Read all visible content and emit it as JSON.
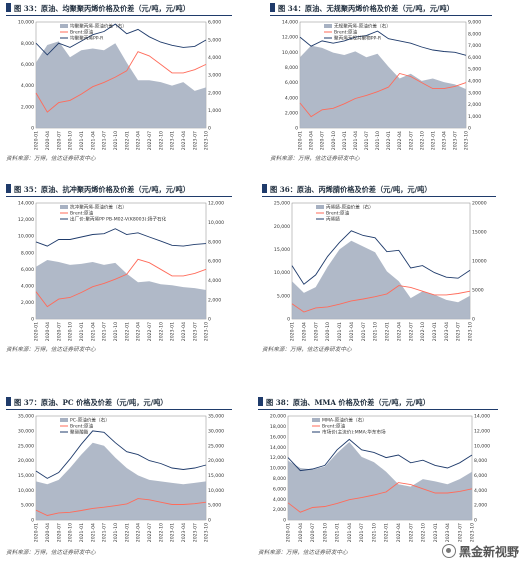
{
  "figures": [
    {
      "title": "图 33：原油、均聚聚丙烯价格及价差（元/吨，元/吨）",
      "source": "资料来源：万得，信达证券研发中心",
      "chart_data": {
        "type": "area",
        "dates": [
          "2020-01",
          "2020-04",
          "2020-07",
          "2020-10",
          "2021-01",
          "2021-04",
          "2021-07",
          "2021-10",
          "2022-01",
          "2022-04",
          "2022-07",
          "2022-10",
          "2023-01",
          "2023-04",
          "2023-07",
          "2023-10"
        ],
        "y_left_ticks": [
          "0",
          "2,000",
          "4,000",
          "6,000",
          "8,000",
          "10,000"
        ],
        "y_left_lim": [
          0,
          10000
        ],
        "y_right_ticks": [
          "0",
          "1,000",
          "2,000",
          "3,000",
          "4,000",
          "5,000",
          "6,000"
        ],
        "y_right_lim": [
          0,
          6000
        ],
        "legend_position": "top-left",
        "series": [
          {
            "name": "均聚聚丙烯-原油价差（右）",
            "axis": "right",
            "kind": "area",
            "color": "#a7b1c2",
            "values": [
              3700,
              4700,
              4900,
              4000,
              4400,
              4500,
              4400,
              4800,
              3700,
              2700,
              2700,
              2600,
              2400,
              2600,
              2100,
              2300
            ]
          },
          {
            "name": "Brent:原油",
            "axis": "left",
            "kind": "line",
            "color": "#ff6b5a",
            "values": [
              3300,
              1500,
              2400,
              2600,
              3200,
              3900,
              4300,
              4800,
              5400,
              7200,
              6800,
              6000,
              5200,
              5200,
              5500,
              6000
            ]
          },
          {
            "name": "均聚聚丙烯PP-R",
            "axis": "left",
            "kind": "line",
            "color": "#1f3b6b",
            "values": [
              8000,
              6900,
              8000,
              7600,
              8200,
              8800,
              9100,
              9800,
              8900,
              9300,
              8600,
              8100,
              7800,
              7600,
              7700,
              8300
            ]
          }
        ]
      }
    },
    {
      "title": "图 34：原油、无规聚丙烯价格及价差（元/吨，元/吨）",
      "source": "资料来源：万得，信达证券研发中心",
      "chart_data": {
        "type": "area",
        "dates": [
          "2020-01",
          "2020-04",
          "2020-07",
          "2020-10",
          "2021-01",
          "2021-04",
          "2021-07",
          "2021-10",
          "2022-01",
          "2022-04",
          "2022-07",
          "2022-10",
          "2023-01",
          "2023-04",
          "2023-07",
          "2023-10"
        ],
        "y_left_ticks": [
          "0",
          "2,000",
          "4,000",
          "6,000",
          "8,000",
          "10,000",
          "12,000",
          "14,000"
        ],
        "y_left_lim": [
          0,
          14000
        ],
        "y_right_ticks": [
          "0",
          "1,000",
          "2,000",
          "3,000",
          "4,000",
          "5,000",
          "6,000",
          "7,000",
          "8,000",
          "9,000"
        ],
        "y_right_lim": [
          0,
          9000
        ],
        "legend_position": "top-left",
        "series": [
          {
            "name": "无规聚丙烯-原油价差（右）",
            "axis": "right",
            "kind": "area",
            "color": "#a7b1c2",
            "values": [
              6000,
              7000,
              6800,
              6400,
              6200,
              6500,
              6000,
              6300,
              5200,
              4200,
              4600,
              4000,
              4200,
              3900,
              3700,
              3300
            ]
          },
          {
            "name": "Brent:原油",
            "axis": "left",
            "kind": "line",
            "color": "#ff6b5a",
            "values": [
              3300,
              1500,
              2400,
              2600,
              3200,
              3900,
              4300,
              4800,
              5400,
              7200,
              6800,
              6000,
              5200,
              5200,
              5500,
              6000
            ]
          },
          {
            "name": "聚丙烯无规共聚物PP-R",
            "axis": "left",
            "kind": "line",
            "color": "#1f3b6b",
            "values": [
              12000,
              10800,
              11500,
              11200,
              11500,
              12000,
              12200,
              12800,
              11800,
              11500,
              11200,
              10700,
              10300,
              10100,
              10000,
              9600
            ]
          }
        ]
      }
    },
    {
      "title": "图 35：原油、抗冲聚丙烯价格及价差（元/吨，元/吨）",
      "source": "资料来源：万得，信达证券研发中心",
      "chart_data": {
        "type": "area",
        "dates": [
          "2020-01",
          "2020-04",
          "2020-07",
          "2020-10",
          "2021-01",
          "2021-04",
          "2021-07",
          "2021-10",
          "2022-01",
          "2022-04",
          "2022-07",
          "2022-10",
          "2023-01",
          "2023-04",
          "2023-07",
          "2023-10"
        ],
        "y_left_ticks": [
          "0",
          "2,000",
          "4,000",
          "6,000",
          "8,000",
          "10,000",
          "12,000",
          "14,000"
        ],
        "y_left_lim": [
          0,
          14000
        ],
        "y_right_ticks": [
          "0",
          "2,000",
          "4,000",
          "6,000",
          "8,000",
          "10,000",
          "12,000"
        ],
        "y_right_lim": [
          0,
          12000
        ],
        "legend_position": "top-left",
        "series": [
          {
            "name": "抗冲聚丙烯-原油价差（右）",
            "axis": "right",
            "kind": "area",
            "color": "#a7b1c2",
            "values": [
              5400,
              6100,
              5900,
              5600,
              5700,
              5900,
              5600,
              5800,
              4700,
              3800,
              3900,
              3600,
              3500,
              3300,
              3200,
              3000
            ]
          },
          {
            "name": "Brent:原油",
            "axis": "left",
            "kind": "line",
            "color": "#ff6b5a",
            "values": [
              3300,
              1500,
              2400,
              2600,
              3200,
              3900,
              4300,
              4800,
              5400,
              7200,
              6800,
              6000,
              5200,
              5200,
              5500,
              6000
            ]
          },
          {
            "name": "出厂价:聚丙烯PP PB-M02-V(K8003):扬子石化",
            "axis": "left",
            "kind": "line",
            "color": "#1f3b6b",
            "values": [
              9300,
              8800,
              9600,
              9600,
              9900,
              10200,
              10300,
              10900,
              10200,
              10400,
              9900,
              9400,
              8900,
              8800,
              9000,
              9100
            ]
          }
        ]
      }
    },
    {
      "title": "图 36：原油、丙烯腈价格及价差（元/吨，元/吨）",
      "source": "资料来源：万得，信达证券研发中心",
      "chart_data": {
        "type": "area",
        "dates": [
          "2020-01",
          "2020-04",
          "2020-07",
          "2020-10",
          "2021-01",
          "2021-04",
          "2021-07",
          "2021-10",
          "2022-01",
          "2022-04",
          "2022-07",
          "2022-10",
          "2023-01",
          "2023-04",
          "2023-07",
          "2023-10"
        ],
        "y_left_ticks": [
          "0",
          "5,000",
          "10,000",
          "15,000",
          "20,000",
          "25,000"
        ],
        "y_left_lim": [
          0,
          25000
        ],
        "y_right_ticks": [
          "0",
          "5000",
          "10000",
          "15000",
          "20000"
        ],
        "y_right_lim": [
          0,
          20000
        ],
        "legend_position": "top-left",
        "series": [
          {
            "name": "丙烯腈-原油价差（右）",
            "axis": "right",
            "kind": "area",
            "color": "#a7b1c2",
            "values": [
              6500,
              4500,
              5500,
              9000,
              12000,
              13500,
              12500,
              11500,
              8200,
              6500,
              3600,
              4800,
              4200,
              3300,
              2900,
              4000
            ]
          },
          {
            "name": "Brent:原油",
            "axis": "left",
            "kind": "line",
            "color": "#ff6b5a",
            "values": [
              3300,
              1500,
              2400,
              2600,
              3200,
              3900,
              4300,
              4800,
              5400,
              7200,
              6800,
              6000,
              5200,
              5200,
              5500,
              6000
            ]
          },
          {
            "name": "丙烯腈",
            "axis": "left",
            "kind": "line",
            "color": "#1f3b6b",
            "values": [
              11500,
              7500,
              9500,
              13500,
              16500,
              19000,
              18000,
              17500,
              14500,
              14800,
              11000,
              11500,
              10000,
              9000,
              8800,
              10500
            ]
          }
        ]
      }
    },
    {
      "title": "图 37：原油、PC 价格及价差（元/吨，元/吨）",
      "source": "资料来源：万得，信达证券研发中心",
      "chart_data": {
        "type": "area",
        "dates": [
          "2020-01",
          "2020-04",
          "2020-07",
          "2020-10",
          "2021-01",
          "2021-04",
          "2021-07",
          "2021-10",
          "2022-01",
          "2022-04",
          "2022-07",
          "2022-10",
          "2023-01",
          "2023-04",
          "2023-07",
          "2023-10"
        ],
        "y_left_ticks": [
          "0",
          "5,000",
          "10,000",
          "15,000",
          "20,000",
          "25,000",
          "30,000",
          "35,000"
        ],
        "y_left_lim": [
          0,
          35000
        ],
        "y_right_ticks": [
          "0",
          "5,000",
          "10,000",
          "15,000",
          "20,000",
          "25,000",
          "30,000",
          "35,000"
        ],
        "y_right_lim": [
          0,
          35000
        ],
        "legend_position": "top-left",
        "series": [
          {
            "name": "PC-原油价差（右）",
            "axis": "right",
            "kind": "area",
            "color": "#a7b1c2",
            "values": [
              13000,
              12000,
              13500,
              17500,
              22000,
              26000,
              25000,
              21000,
              17500,
              15000,
              13500,
              13000,
              12500,
              12000,
              12500,
              13000
            ]
          },
          {
            "name": "Brent:原油",
            "axis": "left",
            "kind": "line",
            "color": "#ff6b5a",
            "values": [
              3300,
              1500,
              2400,
              2600,
              3200,
              3900,
              4300,
              4800,
              5400,
              7200,
              6800,
              6000,
              5200,
              5200,
              5500,
              6000
            ]
          },
          {
            "name": "聚碳酸酯",
            "axis": "left",
            "kind": "line",
            "color": "#1f3b6b",
            "values": [
              16500,
              14000,
              16000,
              20500,
              25500,
              30000,
              29500,
              26000,
              23000,
              22000,
              20000,
              19000,
              17500,
              17000,
              17500,
              18500
            ]
          }
        ]
      }
    },
    {
      "title": "图 38：原油、MMA 价格及价差（元/吨，元/吨）",
      "source": "资料来源：万得，信达证券研发中心",
      "chart_data": {
        "type": "area",
        "dates": [
          "2020-01",
          "2020-04",
          "2020-07",
          "2020-10",
          "2021-01",
          "2021-04",
          "2021-07",
          "2021-10",
          "2022-01",
          "2022-04",
          "2022-07",
          "2022-10",
          "2023-01",
          "2023-04",
          "2023-07",
          "2023-10"
        ],
        "y_left_ticks": [
          "0",
          "2,000",
          "4,000",
          "6,000",
          "8,000",
          "10,000",
          "12,000",
          "14,000",
          "16,000",
          "18,000",
          "20,000"
        ],
        "y_left_lim": [
          0,
          20000
        ],
        "y_right_ticks": [
          "0",
          "2,000",
          "4,000",
          "6,000",
          "8,000",
          "10,000",
          "12,000",
          "14,000"
        ],
        "y_right_lim": [
          0,
          14000
        ],
        "legend_position": "top-left",
        "series": [
          {
            "name": "MMA-原油价差（右）",
            "axis": "right",
            "kind": "area",
            "color": "#a7b1c2",
            "values": [
              8000,
              7000,
              6800,
              7200,
              9000,
              10500,
              8500,
              7800,
              6500,
              4800,
              4500,
              5500,
              5200,
              4800,
              5500,
              6500
            ]
          },
          {
            "name": "Brent:原油",
            "axis": "left",
            "kind": "line",
            "color": "#ff6b5a",
            "values": [
              3300,
              1500,
              2400,
              2600,
              3200,
              3900,
              4300,
              4800,
              5400,
              7200,
              6800,
              6000,
              5200,
              5200,
              5500,
              6000
            ]
          },
          {
            "name": "市场价(主流价):MMA:华东市场",
            "axis": "left",
            "kind": "line",
            "color": "#1f3b6b",
            "values": [
              12000,
              9500,
              9800,
              10500,
              13500,
              15500,
              13500,
              13000,
              12000,
              12500,
              11000,
              11500,
              10500,
              10000,
              11000,
              12500
            ]
          }
        ]
      }
    }
  ],
  "watermark": {
    "text": "黑金新视野",
    "icon": "wechat-icon"
  }
}
